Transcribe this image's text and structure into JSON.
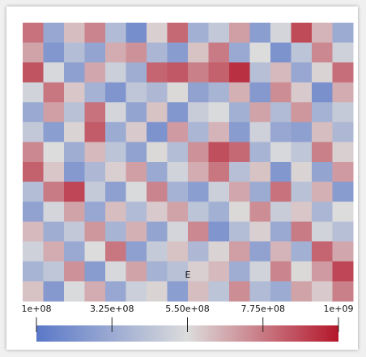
{
  "chart_data": {
    "type": "heatmap",
    "title": "E",
    "clim": [
      100000000.0,
      1000000000.0
    ],
    "cticks": [
      {
        "value": 100000000.0,
        "label": "1e+08"
      },
      {
        "value": 325000000.0,
        "label": "3.25e+08"
      },
      {
        "value": 550000000.0,
        "label": "5.50e+08"
      },
      {
        "value": 775000000.0,
        "label": "7.75e+08"
      },
      {
        "value": 1000000000.0,
        "label": "1e+09"
      }
    ],
    "values": [
      [
        790000000.0,
        310000000.0,
        620000000.0,
        750000000.0,
        400000000.0,
        200000000.0,
        580000000.0,
        810000000.0,
        350000000.0,
        460000000.0,
        690000000.0,
        270000000.0,
        520000000.0,
        880000000.0,
        640000000.0,
        330000000.0
      ],
      [
        680000000.0,
        240000000.0,
        410000000.0,
        300000000.0,
        660000000.0,
        720000000.0,
        380000000.0,
        260000000.0,
        610000000.0,
        770000000.0,
        320000000.0,
        550000000.0,
        220000000.0,
        440000000.0,
        740000000.0,
        500000000.0
      ],
      [
        860000000.0,
        530000000.0,
        280000000.0,
        670000000.0,
        490000000.0,
        340000000.0,
        820000000.0,
        850000000.0,
        760000000.0,
        830000000.0,
        940000000.0,
        420000000.0,
        630000000.0,
        310000000.0,
        570000000.0,
        800000000.0
      ],
      [
        510000000.0,
        780000000.0,
        600000000.0,
        360000000.0,
        230000000.0,
        450000000.0,
        390000000.0,
        560000000.0,
        290000000.0,
        370000000.0,
        650000000.0,
        250000000.0,
        730000000.0,
        590000000.0,
        210000000.0,
        660000000.0
      ],
      [
        320000000.0,
        690000000.0,
        430000000.0,
        790000000.0,
        520000000.0,
        300000000.0,
        610000000.0,
        240000000.0,
        480000000.0,
        540000000.0,
        350000000.0,
        680000000.0,
        400000000.0,
        710000000.0,
        360000000.0,
        470000000.0
      ],
      [
        460000000.0,
        270000000.0,
        570000000.0,
        840000000.0,
        330000000.0,
        590000000.0,
        220000000.0,
        700000000.0,
        380000000.0,
        640000000.0,
        260000000.0,
        500000000.0,
        310000000.0,
        280000000.0,
        620000000.0,
        390000000.0
      ],
      [
        740000000.0,
        550000000.0,
        340000000.0,
        630000000.0,
        440000000.0,
        290000000.0,
        560000000.0,
        410000000.0,
        720000000.0,
        870000000.0,
        810000000.0,
        370000000.0,
        530000000.0,
        450000000.0,
        760000000.0,
        580000000.0
      ],
      [
        830000000.0,
        600000000.0,
        250000000.0,
        390000000.0,
        580000000.0,
        690000000.0,
        320000000.0,
        510000000.0,
        660000000.0,
        780000000.0,
        420000000.0,
        610000000.0,
        240000000.0,
        570000000.0,
        300000000.0,
        700000000.0
      ],
      [
        410000000.0,
        770000000.0,
        890000000.0,
        470000000.0,
        280000000.0,
        540000000.0,
        750000000.0,
        360000000.0,
        270000000.0,
        490000000.0,
        670000000.0,
        330000000.0,
        790000000.0,
        430000000.0,
        650000000.0,
        260000000.0
      ],
      [
        290000000.0,
        520000000.0,
        680000000.0,
        310000000.0,
        620000000.0,
        400000000.0,
        590000000.0,
        680000000.0,
        440000000.0,
        350000000.0,
        560000000.0,
        730000000.0,
        480000000.0,
        600000000.0,
        380000000.0,
        550000000.0
      ],
      [
        630000000.0,
        340000000.0,
        460000000.0,
        710000000.0,
        370000000.0,
        650000000.0,
        300000000.0,
        520000000.0,
        740000000.0,
        230000000.0,
        410000000.0,
        580000000.0,
        320000000.0,
        770000000.0,
        510000000.0,
        420000000.0
      ],
      [
        500000000.0,
        660000000.0,
        320000000.0,
        550000000.0,
        780000000.0,
        280000000.0,
        470000000.0,
        610000000.0,
        390000000.0,
        570000000.0,
        690000000.0,
        290000000.0,
        640000000.0,
        350000000.0,
        820000000.0,
        670000000.0
      ],
      [
        370000000.0,
        450000000.0,
        720000000.0,
        260000000.0,
        530000000.0,
        680000000.0,
        360000000.0,
        430000000.0,
        580000000.0,
        630000000.0,
        340000000.0,
        510000000.0,
        750000000.0,
        560000000.0,
        700000000.0,
        890000000.0
      ],
      [
        610000000.0,
        250000000.0,
        540000000.0,
        660000000.0,
        310000000.0,
        490000000.0,
        570000000.0,
        270000000.0,
        620000000.0,
        440000000.0,
        730000000.0,
        400000000.0,
        330000000.0,
        680000000.0,
        590000000.0,
        760000000.0
      ]
    ]
  }
}
